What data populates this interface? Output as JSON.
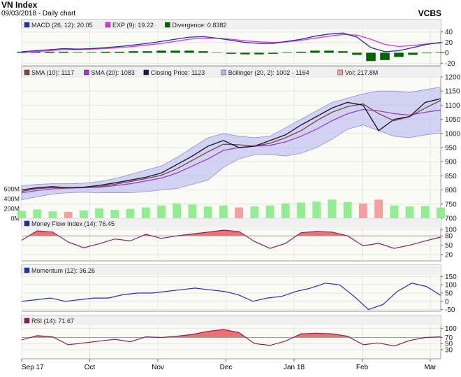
{
  "header": {
    "title": "VN Index",
    "subtitle": "09/03/2018 - Daily chart",
    "brand": "VCBS"
  },
  "colors": {
    "up": "#90ee90",
    "down": "#f4a0a0",
    "band": "#b8b8f0",
    "mfi_fill": "#f07070",
    "price": "#1a1a3a",
    "sma10": "#7a4a3a",
    "sma20": "#a03ad0",
    "macd": "#2030a0",
    "exp": "#e030e0",
    "divergence": "#006400",
    "momentum": "#2030c0",
    "rsi": "#8a2060"
  },
  "chart_data": [
    {
      "type": "line",
      "title": "MACD",
      "legend": [
        {
          "label": "MACD (26, 12): 20.05",
          "color": "#2030a0"
        },
        {
          "label": "EXP (9): 19.22",
          "color": "#e030e0"
        },
        {
          "label": "Divergence: 0.8382",
          "color": "#006400"
        }
      ],
      "yticks": [
        40,
        20,
        0,
        -20
      ],
      "ylim": [
        -25,
        45
      ],
      "series": [
        {
          "name": "MACD (26, 12)",
          "values": [
            2,
            4,
            6,
            8,
            7,
            8,
            10,
            12,
            15,
            18,
            22,
            26,
            30,
            31,
            28,
            24,
            20,
            18,
            18,
            22,
            26,
            32,
            36,
            38,
            30,
            10,
            2,
            4,
            10,
            16,
            20
          ]
        },
        {
          "name": "EXP (9)",
          "values": [
            0,
            2,
            4,
            6,
            6,
            7,
            8,
            10,
            12,
            15,
            18,
            22,
            26,
            28,
            28,
            26,
            23,
            21,
            20,
            21,
            24,
            28,
            32,
            35,
            34,
            26,
            16,
            12,
            14,
            17,
            19
          ]
        }
      ],
      "bars": {
        "name": "Divergence",
        "values": [
          2,
          2,
          2,
          2,
          1,
          1,
          2,
          2,
          3,
          3,
          4,
          4,
          4,
          3,
          0,
          -2,
          -3,
          -3,
          -2,
          1,
          2,
          4,
          4,
          3,
          -4,
          -16,
          -14,
          -8,
          -4,
          -1,
          1
        ]
      }
    },
    {
      "type": "line",
      "title": "Price",
      "legend": [
        {
          "label": "SMA (10): 1117",
          "color": "#7a4a3a"
        },
        {
          "label": "SMA (20): 1083",
          "color": "#a03ad0"
        },
        {
          "label": "Closing Price: 1123",
          "color": "#1a1a3a"
        },
        {
          "label": "Bollinger (20, 2): 1002 - 1164",
          "color": "#b8b8f0"
        },
        {
          "label": "Vol: 217.8M",
          "color": "#f4a0a0"
        }
      ],
      "yticks": [
        1200,
        1150,
        1100,
        1050,
        1000,
        950,
        900,
        850,
        800,
        750,
        700
      ],
      "ylim": [
        700,
        1200
      ],
      "vol_ticks": [
        "600M",
        "400M",
        "200M",
        "0M"
      ],
      "vol_ylim": [
        0,
        600
      ],
      "x_dates": [
        "2017-09-01",
        "2017-09-08",
        "2017-09-15",
        "2017-09-22",
        "2017-09-29",
        "2017-10-06",
        "2017-10-13",
        "2017-10-20",
        "2017-10-27",
        "2017-11-03",
        "2017-11-10",
        "2017-11-17",
        "2017-11-24",
        "2017-12-01",
        "2017-12-08",
        "2017-12-15",
        "2017-12-22",
        "2017-12-29",
        "2018-01-05",
        "2018-01-12",
        "2018-01-19",
        "2018-01-26",
        "2018-02-02",
        "2018-02-09",
        "2018-02-16",
        "2018-02-23",
        "2018-03-02",
        "2018-03-09"
      ],
      "close": [
        800,
        808,
        812,
        808,
        810,
        816,
        825,
        835,
        845,
        860,
        890,
        920,
        955,
        975,
        950,
        955,
        975,
        995,
        1030,
        1060,
        1090,
        1110,
        1100,
        1010,
        1050,
        1060,
        1110,
        1123
      ],
      "sma10": [
        795,
        805,
        808,
        808,
        810,
        812,
        820,
        830,
        840,
        852,
        875,
        905,
        935,
        962,
        960,
        955,
        965,
        985,
        1010,
        1045,
        1075,
        1095,
        1105,
        1070,
        1045,
        1060,
        1090,
        1117
      ],
      "sma20": [
        790,
        798,
        804,
        806,
        808,
        810,
        815,
        822,
        832,
        842,
        860,
        885,
        910,
        940,
        950,
        955,
        958,
        970,
        990,
        1015,
        1045,
        1070,
        1085,
        1080,
        1070,
        1065,
        1075,
        1083
      ],
      "boll_upper": [
        815,
        820,
        822,
        822,
        824,
        830,
        840,
        855,
        870,
        885,
        915,
        950,
        985,
        1000,
        990,
        985,
        990,
        1020,
        1050,
        1080,
        1110,
        1125,
        1140,
        1150,
        1150,
        1145,
        1155,
        1164
      ],
      "boll_lower": [
        765,
        776,
        786,
        790,
        792,
        790,
        790,
        790,
        794,
        800,
        805,
        820,
        835,
        880,
        910,
        925,
        926,
        920,
        930,
        950,
        980,
        1015,
        1030,
        1010,
        990,
        985,
        995,
        1002
      ],
      "volume": [
        150,
        180,
        140,
        130,
        160,
        200,
        170,
        190,
        220,
        260,
        300,
        280,
        240,
        260,
        220,
        240,
        260,
        300,
        320,
        340,
        380,
        330,
        300,
        380,
        260,
        240,
        250,
        218
      ]
    },
    {
      "type": "area",
      "title": "Money Flow Index",
      "legend": [
        {
          "label": "Money Flow Index (14): 76.45",
          "color": "#2030a0"
        }
      ],
      "yticks": [
        100,
        80,
        50,
        20
      ],
      "ylim": [
        0,
        105
      ],
      "threshold": 80,
      "values": [
        66,
        96,
        92,
        60,
        42,
        55,
        70,
        64,
        85,
        72,
        80,
        86,
        92,
        98,
        94,
        62,
        40,
        56,
        90,
        94,
        92,
        80,
        48,
        56,
        40,
        50,
        64,
        76
      ]
    },
    {
      "type": "line",
      "title": "Momentum",
      "legend": [
        {
          "label": "Momentum (12): 36.26",
          "color": "#2030c0"
        }
      ],
      "yticks": [
        150,
        100,
        50,
        0,
        -50
      ],
      "ylim": [
        -60,
        160
      ],
      "values": [
        0,
        10,
        20,
        0,
        10,
        20,
        20,
        40,
        50,
        50,
        60,
        70,
        80,
        70,
        60,
        40,
        0,
        20,
        30,
        60,
        80,
        110,
        100,
        30,
        -50,
        -20,
        60,
        110,
        90,
        36
      ]
    },
    {
      "type": "area",
      "title": "RSI",
      "legend": [
        {
          "label": "RSI (14): 71.67",
          "color": "#8a2060"
        }
      ],
      "yticks": [
        100,
        70,
        50,
        30
      ],
      "ylim": [
        0,
        110
      ],
      "threshold": 70,
      "values": [
        62,
        76,
        72,
        46,
        52,
        58,
        64,
        56,
        72,
        70,
        74,
        80,
        90,
        96,
        86,
        50,
        44,
        58,
        82,
        84,
        82,
        74,
        46,
        52,
        42,
        60,
        70,
        72
      ]
    }
  ],
  "x_axis": {
    "labels": [
      "Sep 17",
      "Oct",
      "Nov",
      "Dec",
      "Jan 18",
      "Feb",
      "Mar"
    ]
  }
}
